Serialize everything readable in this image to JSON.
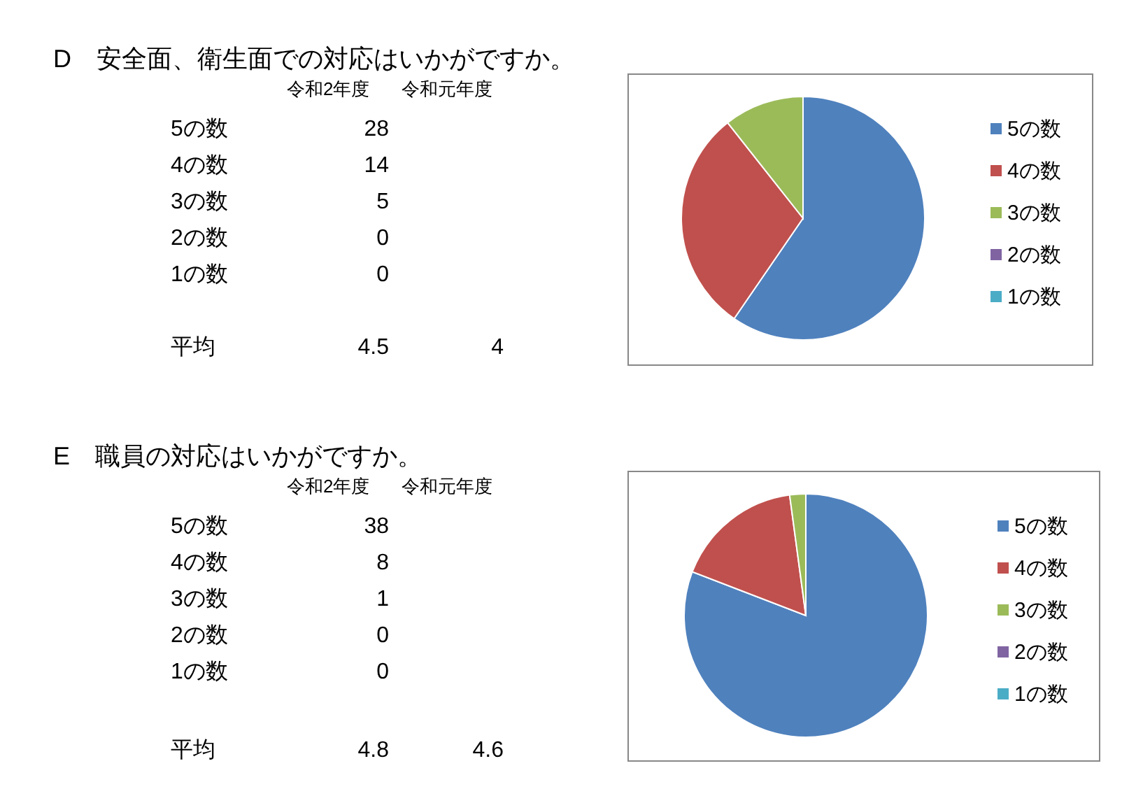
{
  "chart_data": [
    {
      "type": "pie",
      "title": "D　安全面、衛生面での対応はいかがですか。",
      "categories": [
        "5の数",
        "4の数",
        "3の数",
        "2の数",
        "1の数"
      ],
      "values": [
        28,
        14,
        5,
        0,
        0
      ],
      "colors": [
        "#4f81bd",
        "#c0504d",
        "#9bbb59",
        "#8064a2",
        "#4bacc6"
      ],
      "legend": "right",
      "value_labels": [
        "28",
        "14",
        "5",
        "0",
        "0"
      ],
      "annotations": [
        "令和2年度",
        "令和元年度",
        "平均",
        "4.5",
        "4"
      ]
    },
    {
      "type": "pie",
      "title": "E　職員の対応はいかがですか。",
      "categories": [
        "5の数",
        "4の数",
        "3の数",
        "2の数",
        "1の数"
      ],
      "values": [
        38,
        8,
        1,
        0,
        0
      ],
      "colors": [
        "#4f81bd",
        "#c0504d",
        "#9bbb59",
        "#8064a2",
        "#4bacc6"
      ],
      "legend": "right",
      "value_labels": [
        "38",
        "8",
        "1",
        "0",
        "0"
      ],
      "annotations": [
        "令和2年度",
        "令和元年度",
        "平均",
        "4.8",
        "4.6"
      ]
    }
  ]
}
